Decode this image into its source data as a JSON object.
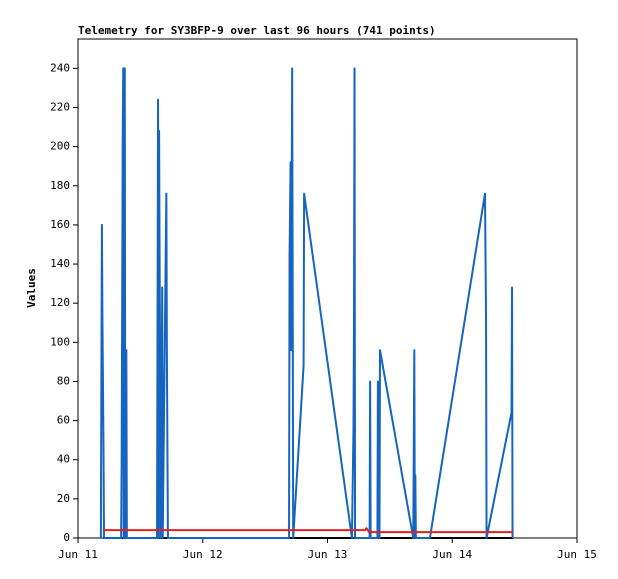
{
  "chart_data": {
    "type": "line",
    "title": "Telemetry for SY3BFP-9 over last 96 hours (741 points)",
    "y_label": "Values",
    "xlim": [
      0,
      96
    ],
    "xticks": [
      {
        "value": 0,
        "label": "Jun 11"
      },
      {
        "value": 24,
        "label": "Jun 12"
      },
      {
        "value": 48,
        "label": "Jun 13"
      },
      {
        "value": 72,
        "label": "Jun 14"
      },
      {
        "value": 96,
        "label": "Jun 15"
      }
    ],
    "ylim": [
      0,
      255
    ],
    "yticks": [
      0,
      20,
      40,
      60,
      80,
      100,
      120,
      140,
      160,
      180,
      200,
      220,
      240
    ],
    "series": [
      {
        "color": "#000000",
        "x": [
          4.8,
          83.7
        ],
        "values": [
          0,
          0
        ]
      },
      {
        "color": "#1565c0",
        "x": [
          4.4,
          4.5,
          4.6,
          4.7,
          4.9,
          5.0,
          8.3,
          8.4,
          8.5,
          8.6,
          8.7,
          8.8,
          9.0,
          9.1,
          9.3,
          9.4,
          15.2,
          15.3,
          15.4,
          15.5,
          15.6,
          15.7,
          15.8,
          15.9,
          16.2,
          16.3,
          17.0,
          17.1,
          17.2,
          17.3,
          40.6,
          40.7,
          40.9,
          41.0,
          41.2,
          41.3,
          41.4,
          43.4,
          43.5,
          52.7,
          53.0,
          53.1,
          53.2,
          53.3,
          56.1,
          56.2,
          56.3,
          57.6,
          57.7,
          57.8,
          58.0,
          58.1,
          64.5,
          64.6,
          64.7,
          64.8,
          64.9,
          65.0,
          67.7,
          78.3,
          78.5,
          78.6,
          83.4,
          83.5,
          83.6
        ],
        "values": [
          0,
          80,
          160,
          112,
          48,
          0,
          0,
          40,
          120,
          200,
          240,
          0,
          240,
          0,
          96,
          0,
          0,
          112,
          224,
          0,
          208,
          144,
          84,
          0,
          128,
          0,
          176,
          96,
          48,
          0,
          0,
          144,
          192,
          96,
          240,
          128,
          0,
          88,
          176,
          0,
          56,
          112,
          240,
          0,
          0,
          80,
          0,
          0,
          80,
          64,
          0,
          96,
          0,
          48,
          96,
          0,
          32,
          0,
          0,
          176,
          112,
          0,
          64,
          128,
          0
        ]
      },
      {
        "color": "#e02020",
        "x": [
          4.8,
          55.2,
          55.5,
          56.0,
          83.7
        ],
        "values": [
          4,
          4,
          5,
          3,
          3
        ]
      }
    ]
  }
}
